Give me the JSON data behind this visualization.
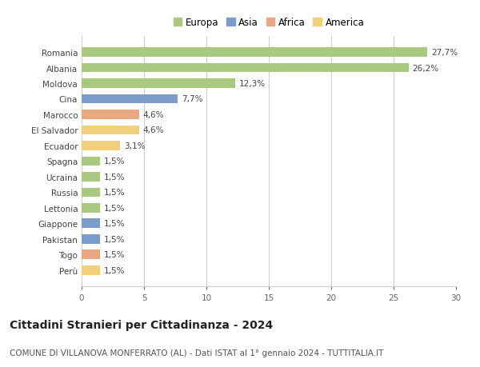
{
  "categories": [
    "Romania",
    "Albania",
    "Moldova",
    "Cina",
    "Marocco",
    "El Salvador",
    "Ecuador",
    "Spagna",
    "Ucraina",
    "Russia",
    "Lettonia",
    "Giappone",
    "Pakistan",
    "Togo",
    "Perù"
  ],
  "values": [
    27.7,
    26.2,
    12.3,
    7.7,
    4.6,
    4.6,
    3.1,
    1.5,
    1.5,
    1.5,
    1.5,
    1.5,
    1.5,
    1.5,
    1.5
  ],
  "labels": [
    "27,7%",
    "26,2%",
    "12,3%",
    "7,7%",
    "4,6%",
    "4,6%",
    "3,1%",
    "1,5%",
    "1,5%",
    "1,5%",
    "1,5%",
    "1,5%",
    "1,5%",
    "1,5%",
    "1,5%"
  ],
  "continents": [
    "Europa",
    "Europa",
    "Europa",
    "Asia",
    "Africa",
    "America",
    "America",
    "Europa",
    "Europa",
    "Europa",
    "Europa",
    "Asia",
    "Asia",
    "Africa",
    "America"
  ],
  "continent_colors": {
    "Europa": "#a8c97f",
    "Asia": "#7a9dc9",
    "Africa": "#e8a882",
    "America": "#f0d07a"
  },
  "legend_order": [
    "Europa",
    "Asia",
    "Africa",
    "America"
  ],
  "xlim": [
    0,
    30
  ],
  "xticks": [
    0,
    5,
    10,
    15,
    20,
    25,
    30
  ],
  "title": "Cittadini Stranieri per Cittadinanza - 2024",
  "subtitle": "COMUNE DI VILLANOVA MONFERRATO (AL) - Dati ISTAT al 1° gennaio 2024 - TUTTITALIA.IT",
  "background_color": "#ffffff",
  "grid_color": "#cccccc",
  "bar_height": 0.6,
  "title_fontsize": 10,
  "subtitle_fontsize": 7.5,
  "label_fontsize": 7.5,
  "tick_fontsize": 7.5,
  "legend_fontsize": 8.5
}
